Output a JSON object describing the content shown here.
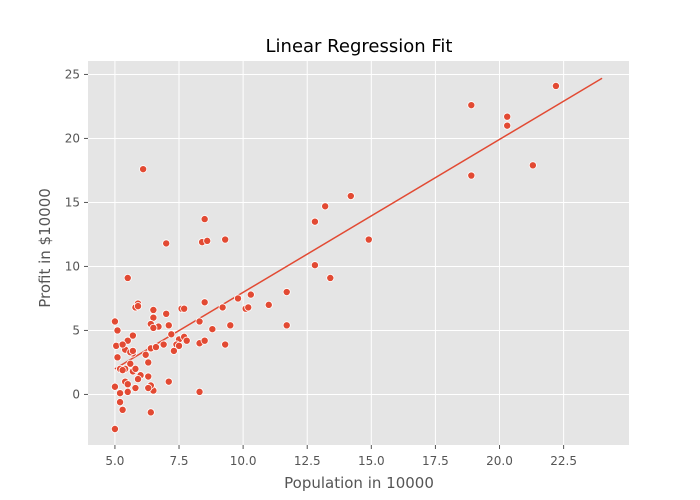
{
  "chart_data": {
    "type": "scatter",
    "title": "Linear Regression Fit",
    "xlabel": "Population in 10000",
    "ylabel": "Profit in $10000",
    "xlim": [
      3.95,
      25.05
    ],
    "ylim": [
      -3.95,
      26.05
    ],
    "grid": true,
    "xticks": [
      5.0,
      7.5,
      10.0,
      12.5,
      15.0,
      17.5,
      20.0,
      22.5
    ],
    "xtick_labels": [
      "5.0",
      "7.5",
      "10.0",
      "12.5",
      "15.0",
      "17.5",
      "20.0",
      "22.5"
    ],
    "yticks": [
      0,
      5,
      10,
      15,
      20,
      25
    ],
    "ytick_labels": [
      "0",
      "5",
      "10",
      "15",
      "20",
      "25"
    ],
    "colors": {
      "background": "#e5e5e5",
      "grid": "#ffffff",
      "marker": "#e24a33",
      "line": "#e24a33",
      "tick": "#555555"
    },
    "points": [
      [
        6.1,
        17.6
      ],
      [
        5.5,
        9.1
      ],
      [
        8.5,
        13.7
      ],
      [
        7.0,
        11.8
      ],
      [
        5.8,
        6.8
      ],
      [
        8.4,
        11.9
      ],
      [
        7.5,
        4.3
      ],
      [
        8.6,
        12.0
      ],
      [
        6.5,
        6.6
      ],
      [
        5.05,
        3.8
      ],
      [
        5.7,
        3.3
      ],
      [
        14.2,
        15.5
      ],
      [
        5.7,
        3.2
      ],
      [
        6.2,
        3.1
      ],
      [
        5.1,
        5.0
      ],
      [
        6.0,
        1.5
      ],
      [
        5.5,
        0.2
      ],
      [
        5.1,
        2.9
      ],
      [
        5.6,
        2.4
      ],
      [
        5.0,
        5.7
      ],
      [
        6.5,
        6.0
      ],
      [
        20.3,
        21.7
      ],
      [
        5.4,
        2.0
      ],
      [
        7.1,
        5.4
      ],
      [
        5.7,
        1.8
      ],
      [
        5.9,
        7.1
      ],
      [
        7.4,
        3.9
      ],
      [
        8.3,
        4.0
      ],
      [
        13.4,
        9.1
      ],
      [
        6.5,
        0.3
      ],
      [
        6.7,
        5.3
      ],
      [
        5.5,
        4.2
      ],
      [
        5.2,
        2.0
      ],
      [
        5.4,
        1.0
      ],
      [
        6.4,
        0.7
      ],
      [
        5.4,
        3.5
      ],
      [
        5.0,
        0.6
      ],
      [
        5.3,
        -1.2
      ],
      [
        5.3,
        1.9
      ],
      [
        5.8,
        0.5
      ],
      [
        5.9,
        6.9
      ],
      [
        6.3,
        0.5
      ],
      [
        18.9,
        22.6
      ],
      [
        8.3,
        5.7
      ],
      [
        11.7,
        8.0
      ],
      [
        18.9,
        17.1
      ],
      [
        7.7,
        4.5
      ],
      [
        21.3,
        17.9
      ],
      [
        5.3,
        3.9
      ],
      [
        6.4,
        5.5
      ],
      [
        9.3,
        3.9
      ],
      [
        6.4,
        3.6
      ],
      [
        6.3,
        2.5
      ],
      [
        8.8,
        5.1
      ],
      [
        5.0,
        -2.7
      ],
      [
        6.3,
        1.4
      ],
      [
        6.4,
        -1.4
      ],
      [
        5.7,
        4.6
      ],
      [
        5.6,
        3.3
      ],
      [
        5.2,
        0.1
      ],
      [
        5.2,
        -0.6
      ],
      [
        5.9,
        1.2
      ],
      [
        6.5,
        5.2
      ],
      [
        7.2,
        4.7
      ],
      [
        7.3,
        3.4
      ],
      [
        7.6,
        6.7
      ],
      [
        8.5,
        7.2
      ],
      [
        9.2,
        6.8
      ],
      [
        10.1,
        6.7
      ],
      [
        10.3,
        7.8
      ],
      [
        11.7,
        5.4
      ],
      [
        13.2,
        14.7
      ],
      [
        14.9,
        12.1
      ],
      [
        9.3,
        12.1
      ],
      [
        12.8,
        13.5
      ],
      [
        12.8,
        10.1
      ],
      [
        9.8,
        7.5
      ],
      [
        9.5,
        5.4
      ],
      [
        11.0,
        7.0
      ],
      [
        10.2,
        6.8
      ],
      [
        20.3,
        21.0
      ],
      [
        22.2,
        24.1
      ],
      [
        8.3,
        0.2
      ],
      [
        7.8,
        4.2
      ],
      [
        7.1,
        1.0
      ],
      [
        7.5,
        3.8
      ],
      [
        7.7,
        6.7
      ],
      [
        6.9,
        3.9
      ],
      [
        8.5,
        4.2
      ],
      [
        7.0,
        6.3
      ],
      [
        5.8,
        2.0
      ],
      [
        5.5,
        0.8
      ],
      [
        5.7,
        3.4
      ],
      [
        6.6,
        3.7
      ]
    ],
    "fit_line": {
      "x": [
        5.0,
        24.0
      ],
      "y": [
        2.0,
        24.7
      ]
    }
  }
}
